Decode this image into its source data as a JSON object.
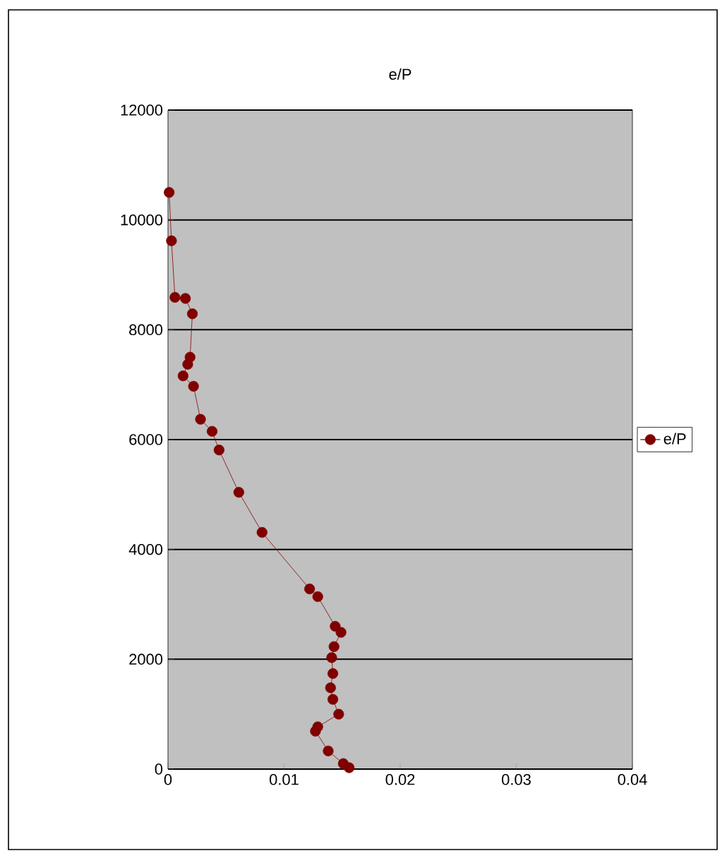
{
  "chart_data": {
    "type": "line",
    "title": "e/P",
    "series": [
      {
        "name": "e/P",
        "color": "#800000",
        "x": [
          0.0156,
          0.0151,
          0.0138,
          0.0127,
          0.0129,
          0.0147,
          0.0142,
          0.014,
          0.0142,
          0.0141,
          0.0143,
          0.0149,
          0.0144,
          0.0129,
          0.0122,
          0.0081,
          0.0061,
          0.0044,
          0.0038,
          0.0028,
          0.0022,
          0.0013,
          0.0017,
          0.0019,
          0.0021,
          0.0015,
          0.0006,
          0.0003,
          0.0001
        ],
        "values": [
          25,
          100,
          330,
          690,
          770,
          1000,
          1270,
          1480,
          1740,
          2030,
          2230,
          2490,
          2600,
          3140,
          3280,
          4310,
          5040,
          5810,
          6150,
          6370,
          6970,
          7160,
          7370,
          7500,
          8290,
          8570,
          8590,
          9620,
          10500
        ]
      }
    ],
    "xlim": [
      0,
      0.04
    ],
    "xticks": [
      0,
      0.01,
      0.02,
      0.03,
      0.04
    ],
    "ylim": [
      0,
      12000
    ],
    "yticks": [
      0,
      2000,
      4000,
      6000,
      8000,
      10000,
      12000
    ],
    "grid": "y",
    "legend": "right",
    "marker": "circle",
    "line_style": "solid"
  }
}
